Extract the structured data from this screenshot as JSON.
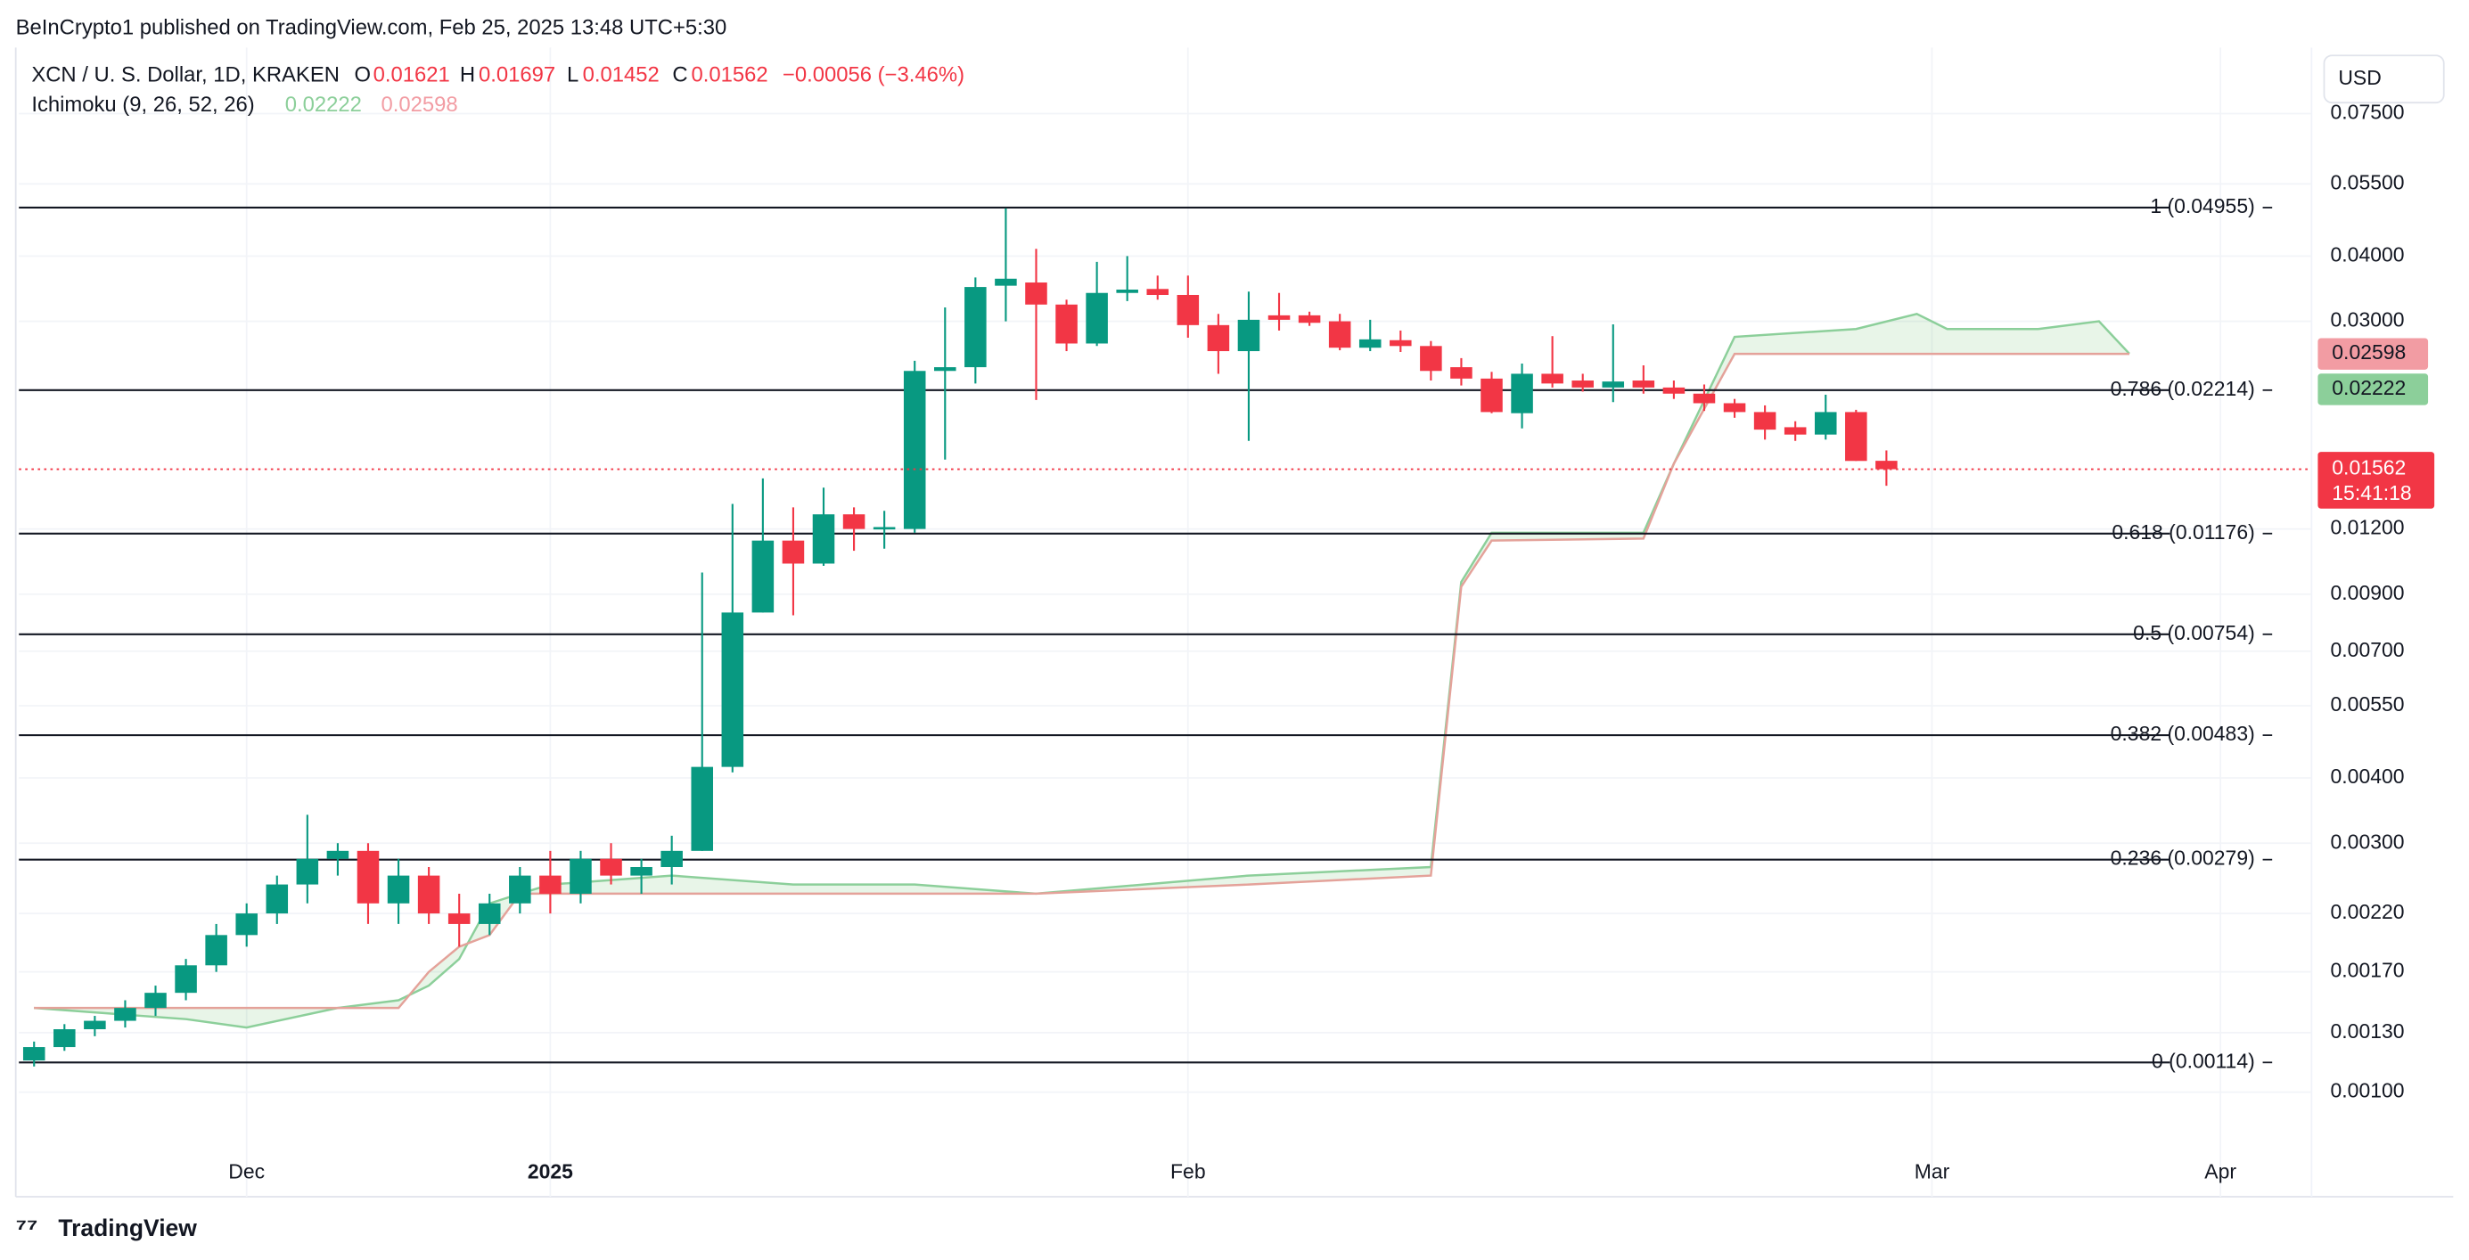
{
  "chart_data": {
    "type": "candlestick",
    "attribution": "BeInCrypto1 published on TradingView.com, Feb 25, 2025 13:48 UTC+5:30",
    "title": "XCN / U. S. Dollar, 1D, KRAKEN",
    "ohlc_labels": [
      "O",
      "H",
      "L",
      "C"
    ],
    "change": "−0.00056 (−3.46%)",
    "currency": "USD",
    "countdown": "15:41:18",
    "brand": "TradingView",
    "up_color": "#089981",
    "down_color": "#f23645",
    "log_scale": true,
    "grid": true,
    "categories": [
      null,
      null,
      null,
      null,
      null,
      null,
      null,
      null,
      null,
      null,
      null,
      null,
      null,
      null,
      null,
      null,
      null,
      null,
      null,
      null,
      null,
      null,
      null,
      null,
      null,
      null,
      null,
      null,
      null,
      null,
      null,
      null,
      null,
      null,
      null,
      null,
      null,
      null,
      null,
      null,
      null,
      null,
      null,
      null,
      null,
      null,
      null,
      null,
      null,
      null,
      null,
      null,
      null,
      null,
      null,
      null,
      null,
      null,
      null,
      null,
      null,
      null
    ],
    "open": [
      0.00115,
      0.00122,
      0.00132,
      0.00137,
      0.00145,
      0.00155,
      0.00175,
      0.002,
      0.0022,
      0.0025,
      0.0028,
      0.0029,
      0.0023,
      0.0026,
      0.0022,
      0.0021,
      0.0023,
      0.0026,
      0.0024,
      0.0028,
      0.0026,
      0.0027,
      0.0029,
      0.0042,
      0.0083,
      0.0114,
      0.0103,
      0.0128,
      0.012,
      0.012,
      0.0241,
      0.0245,
      0.0351,
      0.0356,
      0.0323,
      0.0272,
      0.034,
      0.0346,
      0.0337,
      0.0295,
      0.0263,
      0.0308,
      0.0308,
      0.03,
      0.0267,
      0.0276,
      0.0269,
      0.0245,
      0.0233,
      0.02,
      0.0238,
      0.0231,
      0.0224,
      0.0231,
      0.0224,
      0.0218,
      0.0209,
      0.0201,
      0.0188,
      0.0182,
      0.0201,
      0.01621
    ],
    "high": [
      0.00125,
      0.00135,
      0.0014,
      0.0015,
      0.0016,
      0.0018,
      0.0021,
      0.0023,
      0.0026,
      0.0034,
      0.003,
      0.003,
      0.0028,
      0.0027,
      0.0024,
      0.0024,
      0.0027,
      0.0029,
      0.0029,
      0.003,
      0.0028,
      0.0031,
      0.0099,
      0.0134,
      0.015,
      0.0132,
      0.0144,
      0.0132,
      0.013,
      0.0252,
      0.0319,
      0.0364,
      0.0494,
      0.0413,
      0.033,
      0.039,
      0.04,
      0.0367,
      0.0367,
      0.031,
      0.0342,
      0.034,
      0.0313,
      0.031,
      0.0302,
      0.0288,
      0.0275,
      0.0255,
      0.024,
      0.0249,
      0.0281,
      0.0238,
      0.0296,
      0.0247,
      0.0231,
      0.0227,
      0.0213,
      0.0207,
      0.0193,
      0.0217,
      0.0203,
      0.01697
    ],
    "low": [
      0.00112,
      0.0012,
      0.00128,
      0.00133,
      0.0014,
      0.0015,
      0.0017,
      0.0019,
      0.0021,
      0.0023,
      0.0026,
      0.0021,
      0.0021,
      0.0021,
      0.0019,
      0.002,
      0.0022,
      0.0022,
      0.0023,
      0.0025,
      0.0024,
      0.0025,
      0.0029,
      0.0041,
      0.0083,
      0.0082,
      0.0102,
      0.0109,
      0.011,
      0.0118,
      0.0163,
      0.0228,
      0.03,
      0.0212,
      0.0263,
      0.0269,
      0.0328,
      0.033,
      0.0279,
      0.0238,
      0.0177,
      0.0288,
      0.0294,
      0.0264,
      0.0263,
      0.0262,
      0.0231,
      0.0226,
      0.02,
      0.0187,
      0.0224,
      0.022,
      0.021,
      0.0218,
      0.0213,
      0.0202,
      0.0196,
      0.0178,
      0.0177,
      0.0178,
      0.0162,
      0.01452
    ],
    "close": [
      0.00122,
      0.00132,
      0.00137,
      0.00145,
      0.00155,
      0.00175,
      0.002,
      0.0022,
      0.0025,
      0.0028,
      0.0029,
      0.0023,
      0.0026,
      0.0022,
      0.0021,
      0.0023,
      0.0026,
      0.0024,
      0.0028,
      0.0026,
      0.0027,
      0.0029,
      0.0042,
      0.0083,
      0.0114,
      0.0103,
      0.0128,
      0.012,
      0.0121,
      0.0241,
      0.0245,
      0.0349,
      0.0362,
      0.0323,
      0.0272,
      0.034,
      0.0345,
      0.0337,
      0.0295,
      0.0263,
      0.0302,
      0.0302,
      0.0298,
      0.0267,
      0.0277,
      0.0269,
      0.0241,
      0.0233,
      0.0201,
      0.0238,
      0.0228,
      0.0224,
      0.023,
      0.0224,
      0.0218,
      0.0209,
      0.0201,
      0.0186,
      0.0182,
      0.0201,
      0.0162,
      0.01562
    ],
    "xlim": [
      -0.5,
      75
    ],
    "xticks": [
      {
        "value": 7,
        "label": "Dec"
      },
      {
        "value": 17,
        "label": "2025"
      },
      {
        "value": 38,
        "label": "Feb"
      },
      {
        "value": 62.5,
        "label": "Mar"
      },
      {
        "value": 72,
        "label": "Apr"
      }
    ],
    "ylim": [
      0.00075,
      0.099
    ],
    "yticks": [
      {
        "value": 0.075,
        "label": "0.07500"
      },
      {
        "value": 0.055,
        "label": "0.05500"
      },
      {
        "value": 0.04,
        "label": "0.04000"
      },
      {
        "value": 0.03,
        "label": "0.03000"
      },
      {
        "value": 0.012,
        "label": "0.01200"
      },
      {
        "value": 0.009,
        "label": "0.00900"
      },
      {
        "value": 0.007,
        "label": "0.00700"
      },
      {
        "value": 0.0055,
        "label": "0.00550"
      },
      {
        "value": 0.004,
        "label": "0.00400"
      },
      {
        "value": 0.003,
        "label": "0.00300"
      },
      {
        "value": 0.0022,
        "label": "0.00220"
      },
      {
        "value": 0.0017,
        "label": "0.00170"
      },
      {
        "value": 0.0013,
        "label": "0.00130"
      },
      {
        "value": 0.001,
        "label": "0.00100"
      }
    ],
    "levels": [
      {
        "value": 0.04955,
        "label": "1 (0.04955)"
      },
      {
        "value": 0.02214,
        "label": "0.786 (0.02214)"
      },
      {
        "value": 0.01176,
        "label": "0.618 (0.01176)"
      },
      {
        "value": 0.00754,
        "label": "0.5 (0.00754)"
      },
      {
        "value": 0.00483,
        "label": "0.382 (0.00483)"
      },
      {
        "value": 0.00279,
        "label": "0.236 (0.00279)"
      },
      {
        "value": 0.00114,
        "label": "0 (0.00114)"
      }
    ],
    "ichimoku": {
      "label": "Ichimoku (9, 26, 52, 26)",
      "values": [
        0.02222,
        0.02598
      ],
      "colors": [
        "#8ccf9a",
        "#f29ca3"
      ],
      "spans": [
        {
          "color": "#8ccf9a",
          "x": [
            0,
            5,
            7,
            10,
            12,
            13,
            14,
            15,
            16,
            17,
            21,
            25,
            29,
            33,
            40,
            46,
            47,
            48,
            53,
            54,
            56,
            60,
            62,
            63,
            66,
            68,
            69
          ],
          "values": [
            0.00145,
            0.00138,
            0.00133,
            0.00145,
            0.0015,
            0.0016,
            0.0018,
            0.0023,
            0.0024,
            0.0025,
            0.0026,
            0.0025,
            0.0025,
            0.0024,
            0.0026,
            0.0027,
            0.0095,
            0.0118,
            0.0118,
            0.016,
            0.028,
            0.029,
            0.031,
            0.029,
            0.029,
            0.03,
            0.026
          ]
        },
        {
          "color": "#e4a29a",
          "x": [
            0,
            5,
            7,
            10,
            12,
            13,
            14,
            15,
            16,
            17,
            21,
            25,
            29,
            33,
            40,
            46,
            47,
            48,
            53,
            54,
            56,
            60,
            62,
            63,
            66,
            68,
            69
          ],
          "values": [
            0.00145,
            0.00145,
            0.00145,
            0.00145,
            0.00145,
            0.0017,
            0.0019,
            0.002,
            0.0024,
            0.0024,
            0.0024,
            0.0024,
            0.0024,
            0.0024,
            0.0025,
            0.0026,
            0.0093,
            0.0114,
            0.0115,
            0.016,
            0.02598,
            0.02598,
            0.02598,
            0.02598,
            0.02598,
            0.02598,
            0.02598
          ]
        }
      ]
    }
  }
}
